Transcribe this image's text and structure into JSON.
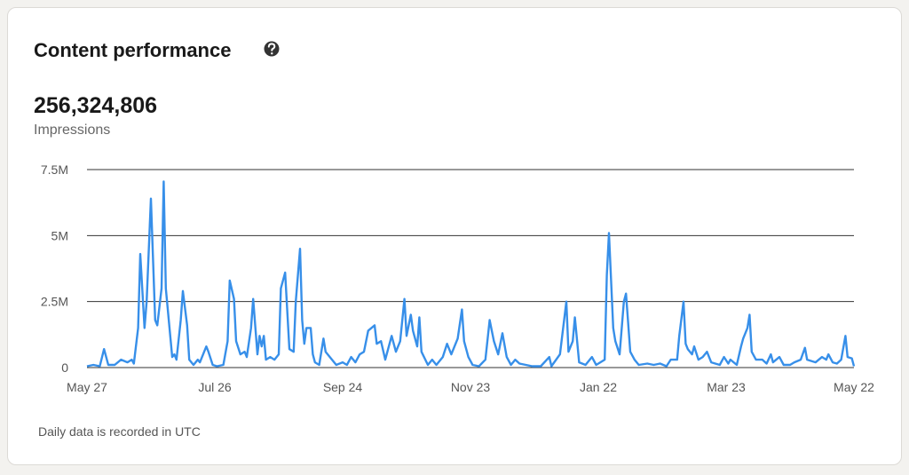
{
  "header": {
    "title": "Content performance",
    "total": "256,324,806",
    "metric": "Impressions"
  },
  "footer": "Daily data is recorded in UTC",
  "chart_data": {
    "type": "line",
    "x": [
      0,
      3,
      6,
      8,
      10,
      13,
      16,
      19,
      21,
      22,
      24,
      25,
      27,
      28,
      30,
      32,
      33,
      35,
      36,
      37,
      40,
      41,
      42,
      44,
      45,
      47,
      48,
      50,
      52,
      53,
      56,
      57,
      59,
      61,
      64,
      66,
      67,
      69,
      70,
      72,
      74,
      75,
      77,
      78,
      80,
      81,
      82,
      83,
      84,
      86,
      88,
      90,
      91,
      93,
      95,
      97,
      98,
      100,
      101,
      102,
      103,
      105,
      106,
      107,
      109,
      111,
      112,
      115,
      117,
      120,
      122,
      124,
      126,
      128,
      130,
      132,
      135,
      136,
      138,
      140,
      143,
      145,
      147,
      149,
      150,
      152,
      153,
      155,
      156,
      157,
      160,
      162,
      164,
      167,
      169,
      171,
      174,
      176,
      177,
      179,
      181,
      184,
      187,
      189,
      191,
      193,
      195,
      197,
      199,
      201,
      203,
      206,
      209,
      213,
      217,
      218,
      222,
      225,
      226,
      228,
      229,
      231,
      234,
      237,
      239,
      243,
      244,
      245,
      247,
      248,
      250,
      252,
      253,
      255,
      257,
      259,
      263,
      266,
      269,
      272,
      274,
      277,
      278,
      280,
      281,
      282,
      284,
      285,
      287,
      289,
      291,
      293,
      297,
      299,
      301,
      302,
      305,
      307,
      308,
      310,
      311,
      312,
      314,
      317,
      319,
      321,
      322,
      325,
      327,
      330,
      332,
      335,
      337,
      338,
      342,
      345,
      347,
      348,
      350,
      352,
      354,
      356,
      357,
      359,
      360
    ],
    "series": [
      {
        "name": "Impressions",
        "color": "#378fe9",
        "values": [
          50000,
          100000,
          50000,
          700000,
          100000,
          100000,
          300000,
          200000,
          300000,
          150000,
          1500000,
          4300000,
          1500000,
          2500000,
          6400000,
          1800000,
          1600000,
          3000000,
          7050000,
          3000000,
          400000,
          500000,
          300000,
          1800000,
          2900000,
          1600000,
          300000,
          100000,
          300000,
          200000,
          800000,
          600000,
          100000,
          50000,
          100000,
          1000000,
          3300000,
          2600000,
          1000000,
          500000,
          600000,
          400000,
          1500000,
          2600000,
          500000,
          1200000,
          800000,
          1200000,
          300000,
          400000,
          300000,
          500000,
          3000000,
          3600000,
          700000,
          600000,
          2500000,
          4500000,
          1800000,
          900000,
          1500000,
          1500000,
          500000,
          200000,
          100000,
          1100000,
          600000,
          300000,
          100000,
          200000,
          100000,
          400000,
          200000,
          500000,
          600000,
          1400000,
          1600000,
          900000,
          1000000,
          300000,
          1200000,
          600000,
          1000000,
          2600000,
          1200000,
          2000000,
          1400000,
          800000,
          1900000,
          600000,
          100000,
          300000,
          100000,
          400000,
          900000,
          500000,
          1100000,
          2200000,
          1000000,
          400000,
          100000,
          50000,
          300000,
          1800000,
          1000000,
          500000,
          1300000,
          400000,
          100000,
          300000,
          150000,
          100000,
          50000,
          50000,
          400000,
          50000,
          500000,
          2500000,
          600000,
          1000000,
          1900000,
          200000,
          100000,
          400000,
          100000,
          300000,
          3500000,
          5100000,
          1500000,
          1000000,
          500000,
          2500000,
          2800000,
          600000,
          300000,
          100000,
          150000,
          100000,
          150000,
          50000,
          300000,
          300000,
          1200000,
          2500000,
          900000,
          700000,
          500000,
          800000,
          300000,
          400000,
          600000,
          200000,
          100000,
          400000,
          150000,
          300000,
          100000,
          800000,
          1100000,
          1500000,
          2000000,
          600000,
          300000,
          300000,
          150000,
          500000,
          200000,
          400000,
          100000,
          100000,
          200000,
          300000,
          750000,
          300000,
          200000,
          400000,
          300000,
          500000,
          200000,
          150000,
          300000,
          1200000,
          400000,
          350000,
          50000
        ]
      }
    ],
    "xlim": [
      0,
      360
    ],
    "xticks": [
      {
        "value": 0,
        "label": "May 27"
      },
      {
        "value": 60,
        "label": "Jul 26"
      },
      {
        "value": 120,
        "label": "Sep 24"
      },
      {
        "value": 180,
        "label": "Nov 23"
      },
      {
        "value": 240,
        "label": "Jan 22"
      },
      {
        "value": 300,
        "label": "Mar 23"
      },
      {
        "value": 360,
        "label": "May 22"
      }
    ],
    "ylim": [
      0,
      7500000
    ],
    "yticks": [
      0,
      {
        "value": 2500000,
        "label": "2.5M"
      },
      {
        "value": 5000000,
        "label": "5M"
      },
      {
        "value": 7500000,
        "label": "7.5M"
      }
    ],
    "grid": true
  }
}
